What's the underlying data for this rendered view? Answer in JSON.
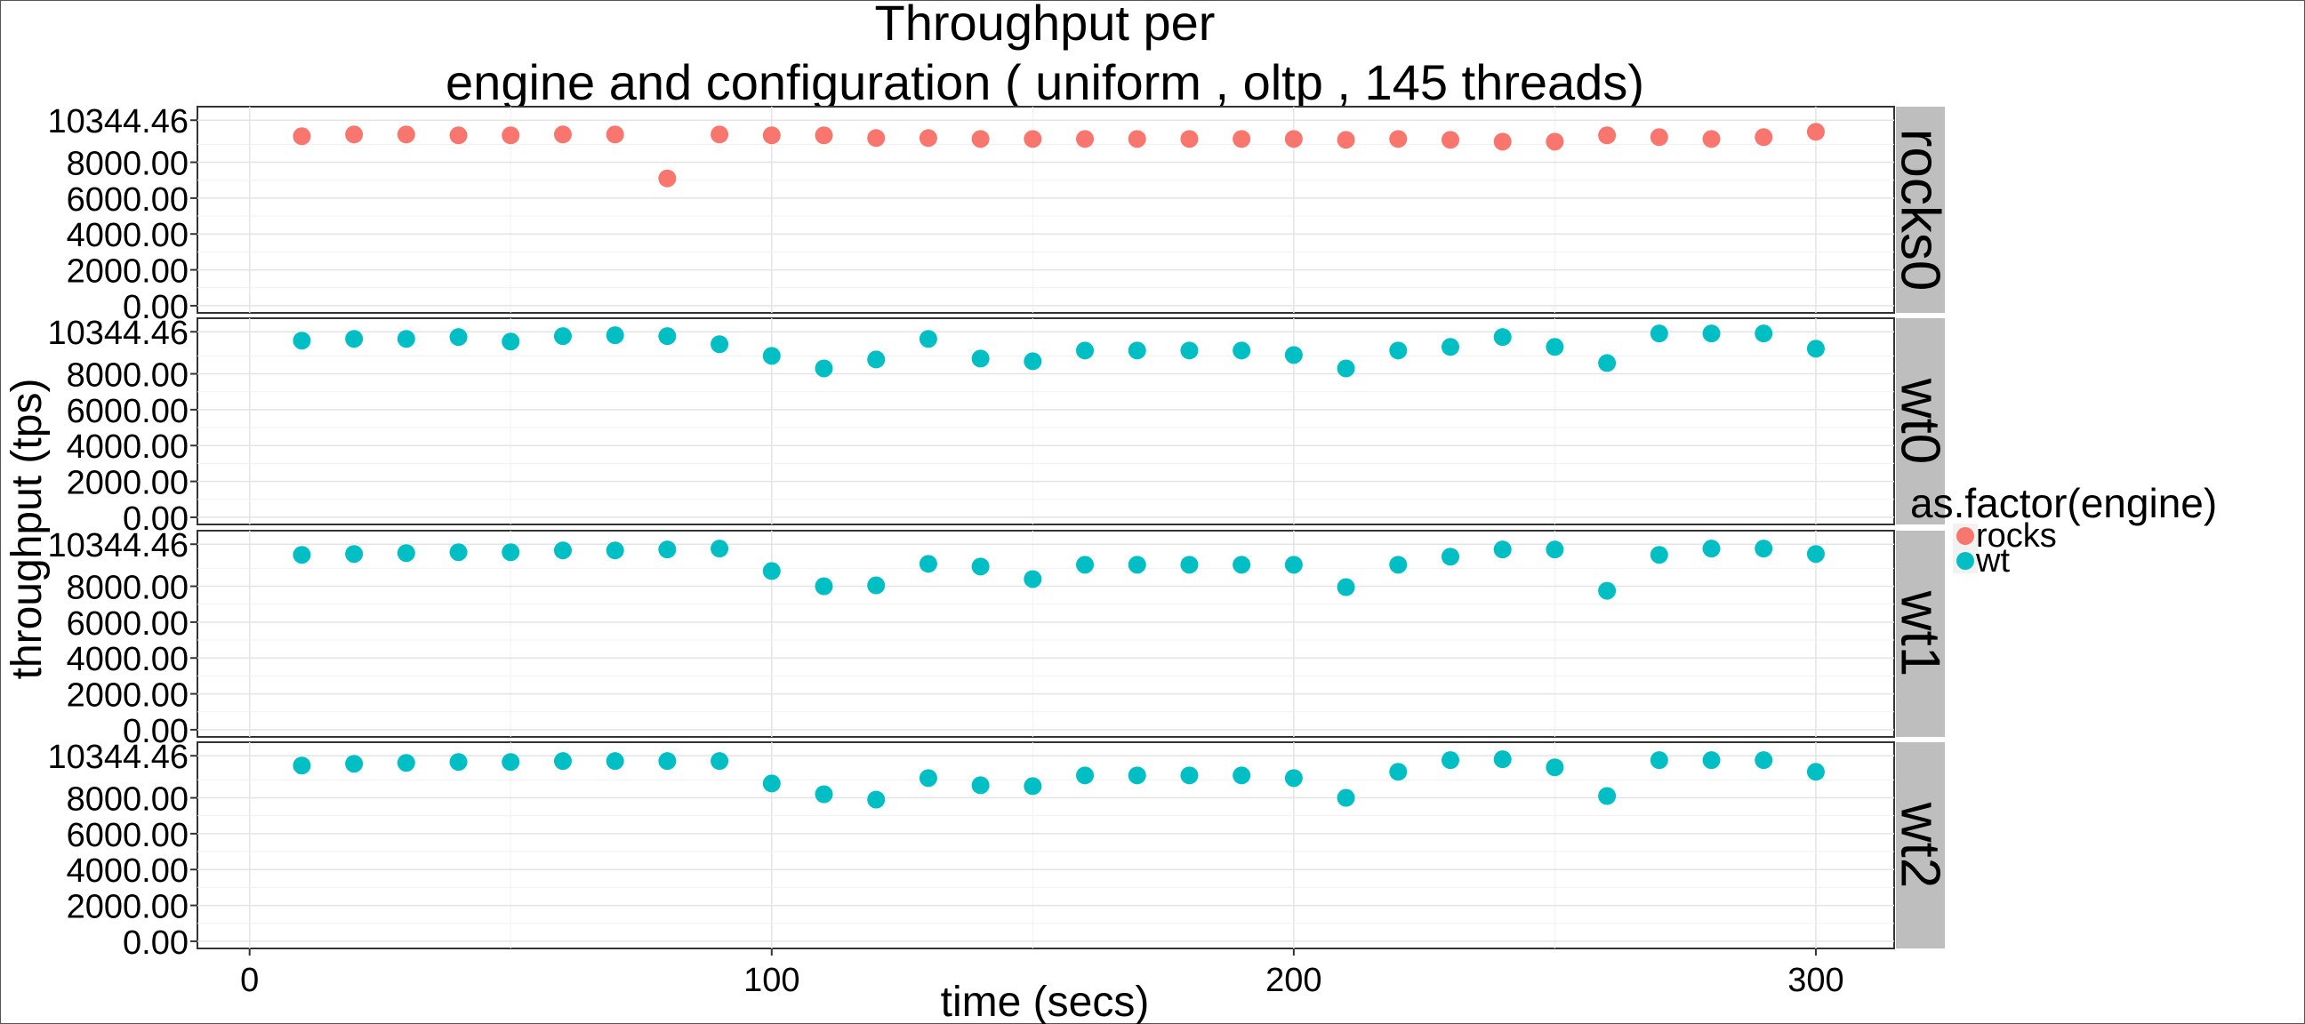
{
  "chart_data": {
    "type": "scatter",
    "title_line1": "Throughput per",
    "title_line2": "engine and configuration ( uniform , oltp ,  145  threads)",
    "xlabel": "time (secs)",
    "ylabel": "throughput (tps)",
    "xlim": [
      -10,
      315
    ],
    "xticks": [
      0,
      100,
      200,
      300
    ],
    "ylim": [
      -400,
      11100
    ],
    "yticks": [
      0,
      2000,
      4000,
      6000,
      8000,
      10344.46
    ],
    "ytick_labels": [
      "0.00",
      "2000.00",
      "4000.00",
      "6000.00",
      "8000.00",
      "10344.46"
    ],
    "grid": true,
    "legend": {
      "title": "as.factor(engine)",
      "position": "right",
      "entries": [
        {
          "label": "rocks",
          "color": "#F8766D"
        },
        {
          "label": "wt",
          "color": "#00BFC4"
        }
      ]
    },
    "x": [
      10,
      20,
      30,
      40,
      50,
      60,
      70,
      80,
      90,
      100,
      110,
      120,
      130,
      140,
      150,
      160,
      170,
      180,
      190,
      200,
      210,
      220,
      230,
      240,
      250,
      260,
      270,
      280,
      290,
      300
    ],
    "panels": [
      {
        "strip": "rocks0",
        "engine": "rocks",
        "color": "#F8766D",
        "values": [
          9450,
          9550,
          9550,
          9500,
          9500,
          9550,
          9550,
          7100,
          9550,
          9500,
          9500,
          9350,
          9350,
          9300,
          9300,
          9300,
          9300,
          9300,
          9300,
          9300,
          9250,
          9300,
          9250,
          9150,
          9150,
          9500,
          9400,
          9300,
          9400,
          9700
        ]
      },
      {
        "strip": "wt0",
        "engine": "wt",
        "color": "#00BFC4",
        "values": [
          9850,
          9950,
          9950,
          10050,
          9800,
          10100,
          10150,
          10100,
          9650,
          9000,
          8300,
          8800,
          9950,
          8850,
          8700,
          9300,
          9300,
          9300,
          9300,
          9050,
          8300,
          9300,
          9500,
          10050,
          9500,
          8600,
          10250,
          10250,
          10250,
          9400
        ]
      },
      {
        "strip": "wt1",
        "engine": "wt",
        "color": "#00BFC4",
        "values": [
          9750,
          9800,
          9850,
          9900,
          9900,
          10000,
          10000,
          10050,
          10100,
          8850,
          8000,
          8050,
          9250,
          9100,
          8400,
          9200,
          9200,
          9200,
          9200,
          9200,
          7950,
          9200,
          9650,
          10050,
          10050,
          7750,
          9750,
          10100,
          10100,
          9800
        ]
      },
      {
        "strip": "wt2",
        "engine": "wt",
        "color": "#00BFC4",
        "values": [
          9800,
          9900,
          9950,
          10000,
          10000,
          10050,
          10050,
          10050,
          10050,
          8800,
          8200,
          7900,
          9100,
          8700,
          8650,
          9250,
          9250,
          9250,
          9250,
          9100,
          8000,
          9450,
          10100,
          10150,
          9700,
          8100,
          10100,
          10100,
          10100,
          9450
        ]
      }
    ]
  }
}
